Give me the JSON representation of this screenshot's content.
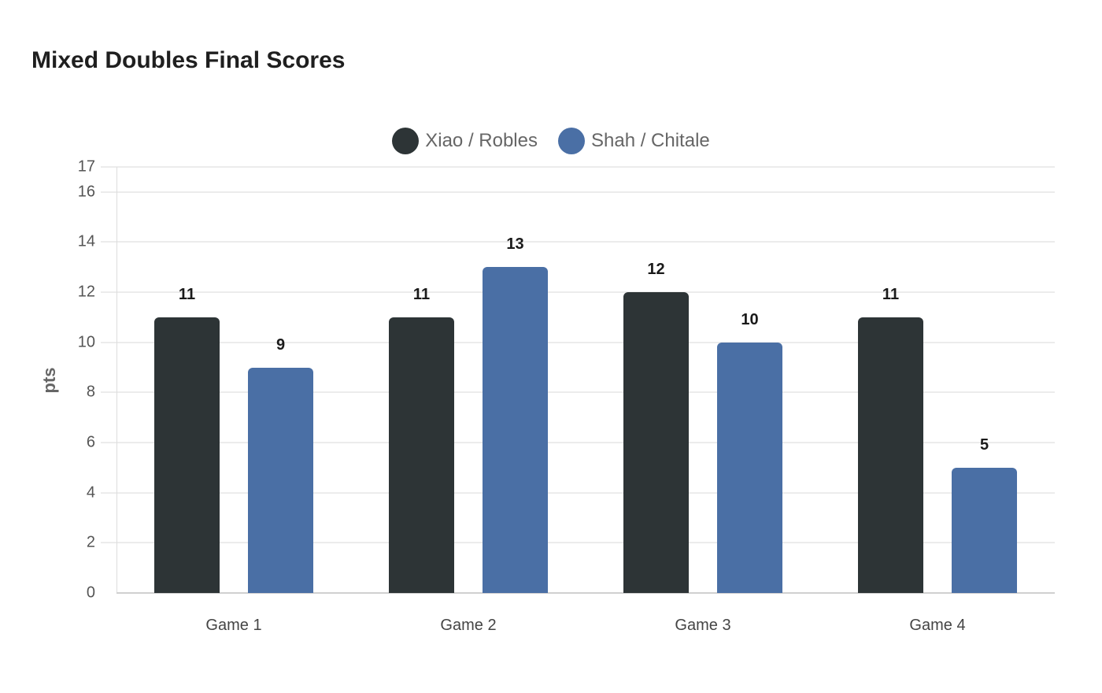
{
  "title": "Mixed Doubles Final Scores",
  "colors": {
    "series0": "#2d3436",
    "series1": "#4a6fa5"
  },
  "legend": [
    {
      "label": "Xiao / Robles",
      "color": "#2d3436"
    },
    {
      "label": "Shah / Chitale",
      "color": "#4a6fa5"
    }
  ],
  "axis": {
    "ylabel": "pts",
    "yticks": [
      "0",
      "2",
      "4",
      "6",
      "8",
      "10",
      "12",
      "14",
      "16",
      "17"
    ]
  },
  "chart_data": {
    "type": "bar",
    "title": "Mixed Doubles Final Scores",
    "xlabel": "",
    "ylabel": "pts",
    "categories": [
      "Game 1",
      "Game 2",
      "Game 3",
      "Game 4"
    ],
    "series": [
      {
        "name": "Xiao / Robles",
        "color": "#2d3436",
        "values": [
          11,
          11,
          12,
          11
        ]
      },
      {
        "name": "Shah / Chitale",
        "color": "#4a6fa5",
        "values": [
          9,
          13,
          10,
          5
        ]
      }
    ],
    "ylim": [
      0,
      17
    ],
    "yticks": [
      0,
      2,
      4,
      6,
      8,
      10,
      12,
      14,
      16,
      17
    ],
    "grid": true,
    "legend_position": "top",
    "data_labels": true
  }
}
